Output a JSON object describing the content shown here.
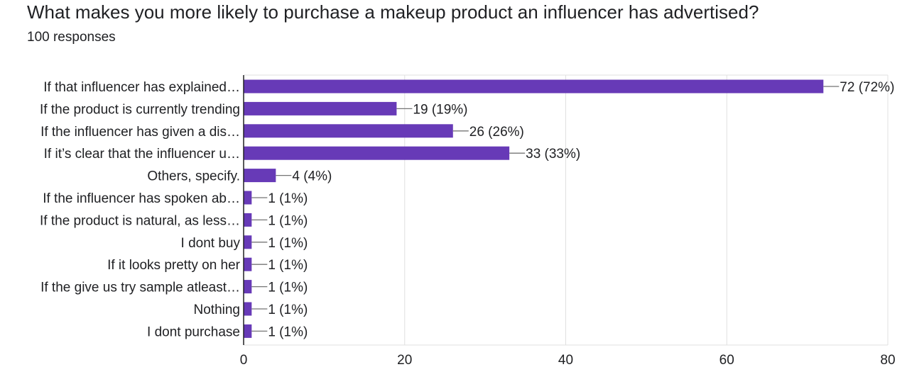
{
  "question": {
    "title": "What makes you more likely to purchase a makeup product an influencer has advertised?",
    "responses": "100 responses"
  },
  "colors": {
    "bar": "#673ab7",
    "grid": "#e0e0e0",
    "axis": "#202124",
    "leader": "#757575"
  },
  "chart_data": {
    "type": "bar",
    "orientation": "horizontal",
    "categories": [
      "If that influencer has explained…",
      "If the product is currently trending",
      "If the influencer has given a dis…",
      "If it’s clear that the influencer u…",
      "Others, specify.",
      "If the influencer has spoken ab…",
      "If the product is natural, as less…",
      "I dont buy",
      "If it looks pretty on her",
      "If the give us try sample atleast…",
      "Nothing",
      "I dont purchase"
    ],
    "values": [
      72,
      19,
      26,
      33,
      4,
      1,
      1,
      1,
      1,
      1,
      1,
      1
    ],
    "data_labels": [
      "72 (72%)",
      "19 (19%)",
      "26 (26%)",
      "33 (33%)",
      "4 (4%)",
      "1 (1%)",
      "1 (1%)",
      "1 (1%)",
      "1 (1%)",
      "1 (1%)",
      "1 (1%)",
      "1 (1%)"
    ],
    "xlim": [
      0,
      80
    ],
    "xticks": [
      0,
      20,
      40,
      60,
      80
    ],
    "grid": true,
    "legend": "none"
  }
}
